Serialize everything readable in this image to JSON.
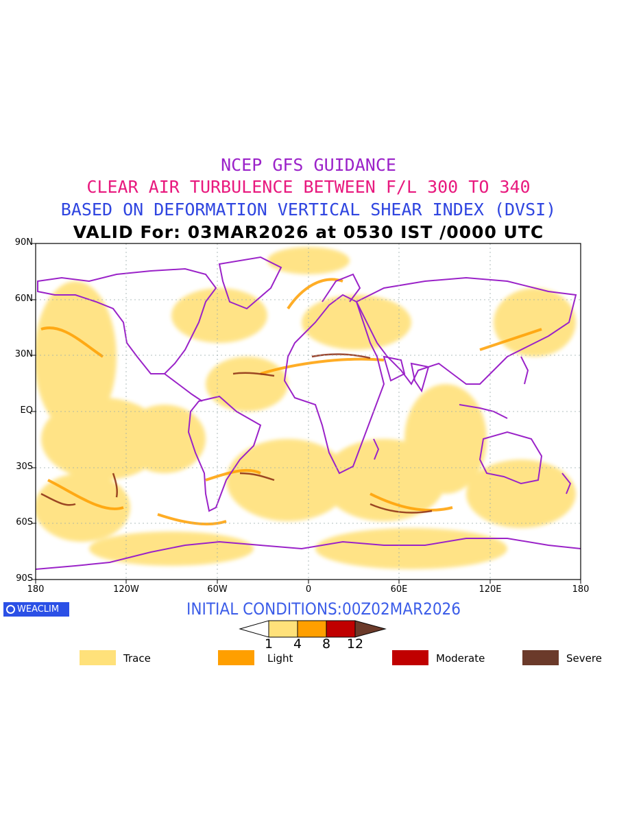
{
  "titles": {
    "line1": "NCEP GFS GUIDANCE",
    "line2": "CLEAR AIR TURBULENCE BETWEEN F/L 300 TO 340",
    "line3": "BASED ON DEFORMATION VERTICAL SHEAR INDEX (DVSI)",
    "line4": "VALID For: 03MAR2026 at 0530 IST /0000 UTC"
  },
  "colors": {
    "line1": "#9b22c9",
    "line2": "#e8197e",
    "line3": "#2f45e0",
    "coast": "#9a22c8",
    "trace": "#ffe17a",
    "light": "#ff9f00",
    "moderate": "#c00000",
    "severe": "#6b3a2a"
  },
  "axes": {
    "lat_labels": [
      "90N",
      "60N",
      "30N",
      "EQ",
      "30S",
      "60S",
      "90S"
    ],
    "lon_labels": [
      "180",
      "120W",
      "60W",
      "0",
      "60E",
      "120E",
      "180"
    ]
  },
  "logo": {
    "text": "WEACLIM"
  },
  "initial_conditions": "INITIAL CONDITIONS:00Z02MAR2026",
  "colorbar": {
    "ticks": [
      "1",
      "4",
      "8",
      "12"
    ]
  },
  "legend": [
    {
      "label": "Trace",
      "color": "#ffe17a"
    },
    {
      "label": "Light",
      "color": "#ff9f00"
    },
    {
      "label": "Moderate",
      "color": "#c00000"
    },
    {
      "label": "Severe",
      "color": "#6b3a2a"
    }
  ]
}
